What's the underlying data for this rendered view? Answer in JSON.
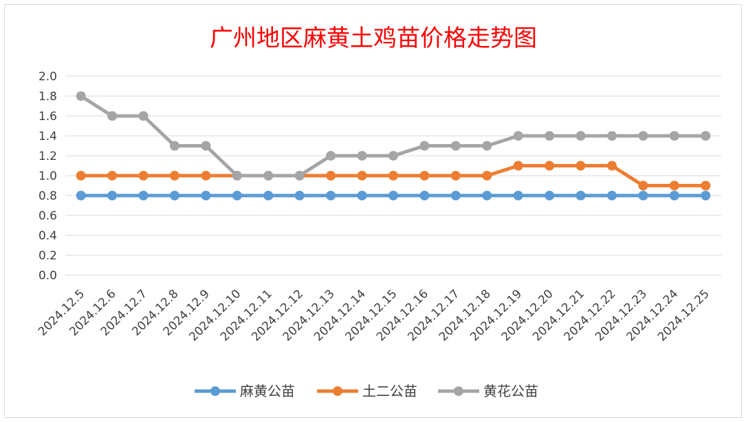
{
  "chart_data": {
    "type": "line",
    "title": "广州地区麻黄土鸡苗价格走势图",
    "xlabel": "",
    "ylabel": "",
    "ylim": [
      0,
      2.0
    ],
    "ytick_step": 0.2,
    "grid": true,
    "legend_position": "bottom",
    "categories": [
      "2024.12.5",
      "2024.12.6",
      "2024.12.7",
      "2024.12.8",
      "2024.12.9",
      "2024.12.10",
      "2024.12.11",
      "2024.12.12",
      "2024.12.13",
      "2024.12.14",
      "2024.12.15",
      "2024.12.16",
      "2024.12.17",
      "2024.12.18",
      "2024.12.19",
      "2024.12.20",
      "2024.12.21",
      "2024.12.22",
      "2024.12.23",
      "2024.12.24",
      "2024.12.25"
    ],
    "series": [
      {
        "name": "麻黄公苗",
        "color": "#5b9bd5",
        "values": [
          0.8,
          0.8,
          0.8,
          0.8,
          0.8,
          0.8,
          0.8,
          0.8,
          0.8,
          0.8,
          0.8,
          0.8,
          0.8,
          0.8,
          0.8,
          0.8,
          0.8,
          0.8,
          0.8,
          0.8,
          0.8
        ]
      },
      {
        "name": "土二公苗",
        "color": "#ed7d31",
        "values": [
          1.0,
          1.0,
          1.0,
          1.0,
          1.0,
          1.0,
          1.0,
          1.0,
          1.0,
          1.0,
          1.0,
          1.0,
          1.0,
          1.0,
          1.1,
          1.1,
          1.1,
          1.1,
          0.9,
          0.9,
          0.9
        ]
      },
      {
        "name": "黄花公苗",
        "color": "#a5a5a5",
        "values": [
          1.8,
          1.6,
          1.6,
          1.3,
          1.3,
          1.0,
          1.0,
          1.0,
          1.2,
          1.2,
          1.2,
          1.3,
          1.3,
          1.3,
          1.4,
          1.4,
          1.4,
          1.4,
          1.4,
          1.4,
          1.4
        ]
      }
    ]
  }
}
